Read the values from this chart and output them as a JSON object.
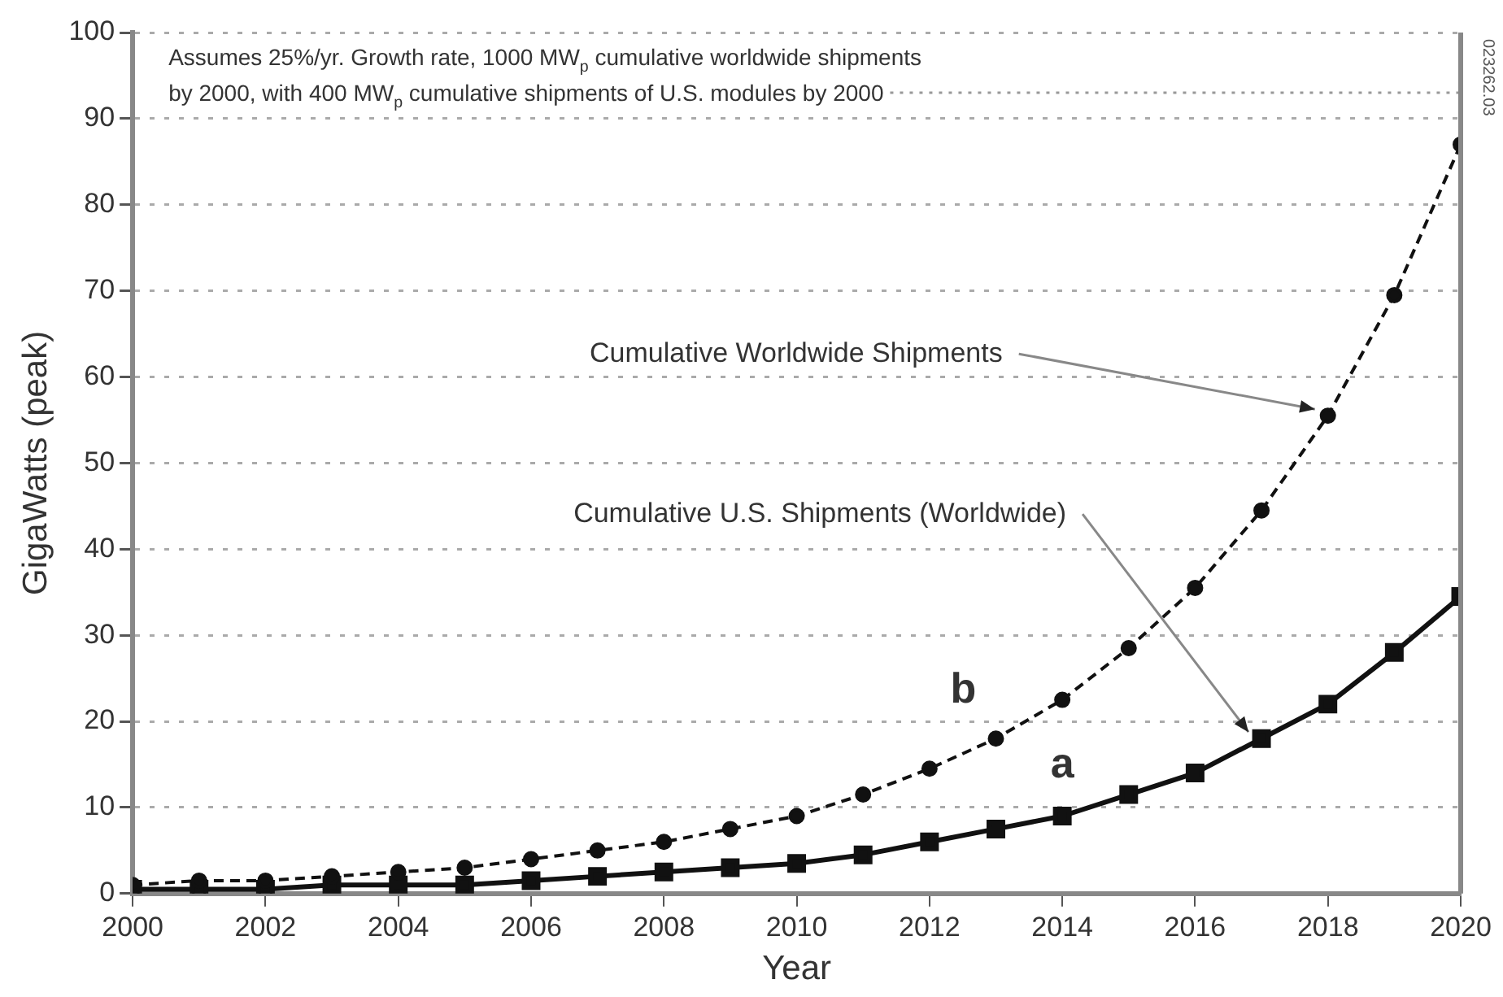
{
  "chart_data": {
    "type": "line",
    "xlabel": "Year",
    "ylabel": "GigaWatts (peak)",
    "x": [
      2000,
      2001,
      2002,
      2003,
      2004,
      2005,
      2006,
      2007,
      2008,
      2009,
      2010,
      2011,
      2012,
      2013,
      2014,
      2015,
      2016,
      2017,
      2018,
      2019,
      2020
    ],
    "xlim": [
      2000,
      2020
    ],
    "xticks": [
      2000,
      2002,
      2004,
      2006,
      2008,
      2010,
      2012,
      2014,
      2016,
      2018,
      2020
    ],
    "ylim": [
      0,
      100
    ],
    "yticks": [
      0,
      10,
      20,
      30,
      40,
      50,
      60,
      70,
      80,
      90,
      100
    ],
    "grid": "y",
    "legend": false,
    "series": [
      {
        "name": "b",
        "color": "#111111",
        "marker": "circle",
        "line_style": "dashed",
        "values": [
          1,
          1.5,
          1.5,
          2,
          2.5,
          3,
          4,
          5,
          6,
          7.5,
          9,
          11.5,
          14.5,
          18,
          22.5,
          28.5,
          35.5,
          44.5,
          55.5,
          69.5,
          87
        ]
      },
      {
        "name": "a",
        "color": "#111111",
        "marker": "square",
        "line_style": "solid",
        "values": [
          0.5,
          0.5,
          0.5,
          1,
          1,
          1,
          1.5,
          2,
          2.5,
          3,
          3.5,
          4.5,
          6,
          7.5,
          9,
          11.5,
          14,
          18,
          22,
          28,
          34.5
        ]
      }
    ],
    "annotations": [
      "Assumes 25%/yr. Growth rate, 1000 MW$_{p}$ cumulative worldwide shipments",
      "by 2000, with 400 MW$_{p}$ cumulative shipments of U.S. modules by 2000",
      {
        "text": "Cumulative Worldwide Shipments",
        "x": 2018,
        "y": 55.5
      },
      {
        "text": "Cumulative U.S. Shipments (Worldwide)",
        "x": 2017,
        "y": 18
      },
      "023262.03"
    ]
  }
}
